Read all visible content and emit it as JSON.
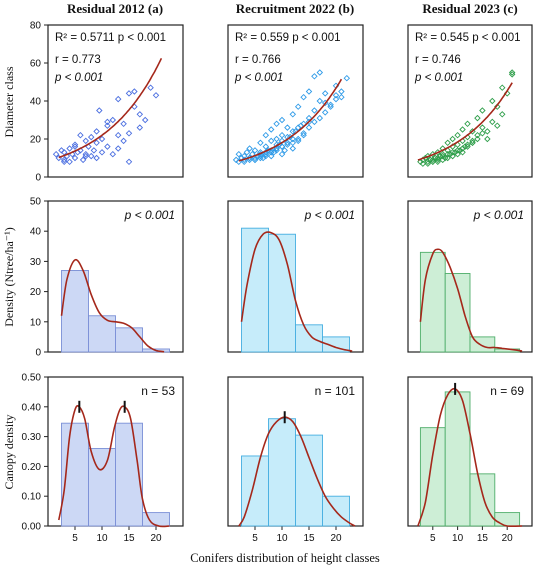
{
  "figure": {
    "xlabel": "Conifers distribution of height classes",
    "column_titles": [
      "Residual 2012 (a)",
      "Recruitment 2022 (b)",
      "Residual 2023 (c)"
    ],
    "row_labels": [
      "Diameter class",
      "Density (Ntree/ha⁻¹)",
      "Canopy density"
    ]
  },
  "chart_data": [
    {
      "id": "a-scatter",
      "type": "scatter",
      "title": "Residual 2012 (a)",
      "ylabel": "Diameter class",
      "ylim": [
        0,
        80
      ],
      "yticks": [
        0,
        20,
        40,
        60,
        80
      ],
      "xlim": [
        0,
        25
      ],
      "annotations": [
        "R² = 0.5711  p < 0.001",
        "r = 0.773",
        "p < 0.001"
      ],
      "colors": {
        "points": "#4a6ee0",
        "fit": "#a5281b"
      },
      "x": [
        1.5,
        2,
        2.5,
        3,
        3,
        3.5,
        4,
        4,
        4.5,
        5,
        5,
        5.5,
        6,
        6,
        6.5,
        7,
        7,
        7.5,
        8,
        8,
        8.5,
        9,
        9,
        9.5,
        10,
        10,
        11,
        11,
        12,
        12,
        13,
        13,
        14,
        14,
        15,
        15,
        16,
        16,
        17,
        17,
        18,
        19,
        20,
        3,
        5,
        7,
        9,
        11,
        13,
        15
      ],
      "y": [
        12,
        10,
        14,
        9,
        13,
        11,
        8,
        15,
        12,
        10,
        17,
        13,
        14,
        22,
        9,
        12,
        19,
        16,
        11,
        21,
        14,
        10,
        18,
        35,
        13,
        20,
        27,
        16,
        12,
        30,
        22,
        15,
        19,
        28,
        8,
        23,
        37,
        45,
        26,
        33,
        30,
        47,
        43,
        8,
        16,
        11,
        24,
        29,
        41,
        44
      ],
      "fit": {
        "model": "exponential",
        "y0": 8.5,
        "k": 0.095,
        "x_range": [
          2,
          21
        ]
      }
    },
    {
      "id": "b-scatter",
      "type": "scatter",
      "title": "Recruitment 2022 (b)",
      "ylim": [
        0,
        80
      ],
      "xlim": [
        0,
        25
      ],
      "annotations": [
        "R² = 0.559  p < 0.001",
        "r = 0.766",
        "p < 0.001"
      ],
      "colors": {
        "points": "#2f9be8",
        "fit": "#a5281b"
      },
      "x": [
        1.5,
        2,
        2,
        2.5,
        3,
        3,
        3.5,
        4,
        4,
        4.5,
        5,
        5,
        5.5,
        6,
        6,
        6.5,
        7,
        7,
        7,
        7.5,
        8,
        8,
        8,
        8.5,
        9,
        9,
        9,
        9.5,
        10,
        10,
        10,
        10.5,
        11,
        11,
        11.5,
        12,
        12,
        12.5,
        13,
        13,
        13.5,
        14,
        14,
        15,
        15,
        16,
        16,
        17,
        17,
        18,
        19,
        20,
        21,
        22,
        3,
        4,
        5,
        6,
        7,
        8,
        9,
        10,
        11,
        12,
        13,
        14,
        15,
        16,
        17,
        18,
        19,
        20,
        21,
        5,
        6,
        7,
        8,
        9,
        10,
        11,
        12,
        6,
        8,
        10,
        12,
        14,
        9,
        11,
        13,
        4,
        7,
        15,
        18,
        20
      ],
      "y": [
        9,
        8,
        12,
        10,
        11,
        9,
        13,
        10,
        15,
        12,
        9,
        14,
        11,
        13,
        18,
        10,
        12,
        16,
        22,
        14,
        11,
        19,
        25,
        13,
        15,
        20,
        28,
        17,
        12,
        22,
        30,
        14,
        18,
        26,
        21,
        15,
        33,
        24,
        19,
        37,
        27,
        22,
        42,
        29,
        45,
        35,
        53,
        40,
        55,
        44,
        37,
        48,
        42,
        52,
        8,
        9,
        10,
        11,
        12,
        13,
        14,
        16,
        17,
        18,
        20,
        23,
        26,
        29,
        31,
        34,
        38,
        41,
        45,
        9,
        10,
        11,
        13,
        15,
        16,
        18,
        20,
        12,
        14,
        19,
        24,
        28,
        17,
        21,
        26,
        10,
        13,
        31,
        39,
        43
      ],
      "fit": {
        "model": "exponential",
        "y0": 7,
        "k": 0.095,
        "x_range": [
          2,
          21
        ]
      }
    },
    {
      "id": "c-scatter",
      "type": "scatter",
      "title": "Residual 2023 (c)",
      "ylim": [
        0,
        80
      ],
      "xlim": [
        0,
        25
      ],
      "annotations": [
        "R² = 0.545  p < 0.001",
        "r = 0.746",
        "p < 0.001"
      ],
      "colors": {
        "points": "#2e9e4a",
        "fit": "#a5281b"
      },
      "x": [
        2.5,
        3,
        3,
        3.5,
        4,
        4,
        4.5,
        5,
        5,
        5.5,
        6,
        6,
        6.5,
        7,
        7,
        7.5,
        8,
        8,
        8.5,
        9,
        9,
        9.5,
        10,
        10,
        10.5,
        11,
        11,
        11.5,
        12,
        12,
        13,
        13,
        14,
        14,
        15,
        16,
        17,
        18,
        19,
        20,
        21,
        4,
        5,
        6,
        7,
        8,
        9,
        10,
        11,
        12,
        13,
        14,
        15,
        6,
        8,
        10,
        12,
        7,
        9,
        11,
        13,
        16,
        18,
        5,
        15,
        17,
        19,
        21
      ],
      "y": [
        8,
        9,
        7,
        10,
        8,
        11,
        9,
        12,
        8,
        10,
        13,
        9,
        11,
        12,
        15,
        10,
        14,
        18,
        12,
        16,
        20,
        13,
        17,
        22,
        14,
        19,
        25,
        16,
        21,
        28,
        18,
        24,
        22,
        31,
        26,
        20,
        29,
        37,
        33,
        44,
        54,
        7,
        9,
        10,
        11,
        12,
        13,
        14,
        15,
        17,
        19,
        20,
        23,
        8,
        10,
        12,
        16,
        9,
        11,
        13,
        18,
        24,
        27,
        8,
        35,
        40,
        47,
        55
      ],
      "fit": {
        "model": "exponential",
        "y0": 7.5,
        "k": 0.09,
        "x_range": [
          2,
          21
        ]
      }
    },
    {
      "id": "a-density",
      "type": "bar",
      "ylabel": "Density (Ntree/ha⁻¹)",
      "ylim": [
        0,
        50
      ],
      "yticks": [
        0,
        10,
        20,
        30,
        40,
        50
      ],
      "xlim": [
        0,
        25
      ],
      "bin_edges": [
        2.5,
        7.5,
        12.5,
        17.5,
        22.5
      ],
      "values": [
        27,
        12,
        8,
        1
      ],
      "annotation": "p < 0.001",
      "colors": {
        "fill": "#ccd8f5",
        "stroke": "#7a8fd6",
        "curve": "#a5281b"
      },
      "curve": [
        [
          2.5,
          12
        ],
        [
          3.5,
          24
        ],
        [
          5,
          30.5
        ],
        [
          6.5,
          27
        ],
        [
          8,
          19
        ],
        [
          9.5,
          13
        ],
        [
          11,
          10.5
        ],
        [
          12.5,
          10
        ],
        [
          14,
          9.5
        ],
        [
          15.5,
          8
        ],
        [
          17,
          5
        ],
        [
          18.5,
          2
        ],
        [
          20,
          0.5
        ],
        [
          21.5,
          0.1
        ]
      ]
    },
    {
      "id": "b-density",
      "type": "bar",
      "ylim": [
        0,
        50
      ],
      "xlim": [
        0,
        25
      ],
      "bin_edges": [
        2.5,
        7.5,
        12.5,
        17.5,
        22.5
      ],
      "values": [
        41,
        39,
        9,
        5
      ],
      "annotation": "p < 0.001",
      "colors": {
        "fill": "#c6ecfa",
        "stroke": "#45aee0",
        "curve": "#a5281b"
      },
      "curve": [
        [
          2.5,
          10
        ],
        [
          3.5,
          22
        ],
        [
          5,
          34
        ],
        [
          6.5,
          39
        ],
        [
          8,
          39.5
        ],
        [
          9.5,
          37
        ],
        [
          11,
          29
        ],
        [
          12.5,
          17
        ],
        [
          14,
          9
        ],
        [
          15.5,
          5
        ],
        [
          17,
          3.5
        ],
        [
          18.5,
          2.5
        ],
        [
          20,
          1.5
        ],
        [
          21.5,
          0.8
        ],
        [
          23,
          0.3
        ]
      ]
    },
    {
      "id": "c-density",
      "type": "bar",
      "ylim": [
        0,
        50
      ],
      "xlim": [
        0,
        25
      ],
      "bin_edges": [
        2.5,
        7.5,
        12.5,
        17.5,
        22.5
      ],
      "values": [
        33,
        26,
        5,
        1
      ],
      "annotation": "p < 0.001",
      "colors": {
        "fill": "#cdeed6",
        "stroke": "#4fae6a",
        "curve": "#a5281b"
      },
      "curve": [
        [
          2.5,
          10
        ],
        [
          3.5,
          24
        ],
        [
          5,
          32.5
        ],
        [
          6,
          34
        ],
        [
          7,
          33
        ],
        [
          8.5,
          28
        ],
        [
          10,
          21
        ],
        [
          11.5,
          12
        ],
        [
          13,
          5
        ],
        [
          14.5,
          2.5
        ],
        [
          16,
          1.5
        ],
        [
          17.5,
          1.5
        ],
        [
          19,
          1.2
        ],
        [
          21,
          0.8
        ],
        [
          23,
          0.3
        ]
      ]
    },
    {
      "id": "a-canopy",
      "type": "bar",
      "ylabel": "Canopy density",
      "ylim": [
        0,
        0.5
      ],
      "yticks": [
        "0.00",
        "0.10",
        "0.20",
        "0.30",
        "0.40",
        "0.50"
      ],
      "xlim": [
        0,
        25
      ],
      "xticks": [
        5,
        10,
        15,
        20
      ],
      "bin_edges": [
        2.5,
        7.5,
        12.5,
        17.5,
        22.5
      ],
      "values": [
        0.345,
        0.26,
        0.345,
        0.045
      ],
      "annotation": "n = 53",
      "peaks": [
        [
          5.8,
          0.4
        ],
        [
          14.2,
          0.4
        ]
      ],
      "colors": {
        "fill": "#ccd8f5",
        "stroke": "#7a8fd6",
        "curve": "#a5281b"
      },
      "curve": [
        [
          2,
          0.02
        ],
        [
          3,
          0.12
        ],
        [
          4,
          0.3
        ],
        [
          5,
          0.39
        ],
        [
          5.8,
          0.4
        ],
        [
          6.8,
          0.36
        ],
        [
          8,
          0.25
        ],
        [
          9.5,
          0.19
        ],
        [
          11,
          0.22
        ],
        [
          12.3,
          0.33
        ],
        [
          13.3,
          0.39
        ],
        [
          14.2,
          0.4
        ],
        [
          15.3,
          0.36
        ],
        [
          16.5,
          0.22
        ],
        [
          17.5,
          0.09
        ],
        [
          18.8,
          0.02
        ],
        [
          20.5,
          0.0
        ],
        [
          22.5,
          0.0
        ]
      ]
    },
    {
      "id": "b-canopy",
      "type": "bar",
      "ylim": [
        0,
        0.5
      ],
      "xlim": [
        0,
        25
      ],
      "xticks": [
        5,
        10,
        15,
        20
      ],
      "bin_edges": [
        2.5,
        7.5,
        12.5,
        17.5,
        22.5
      ],
      "values": [
        0.235,
        0.36,
        0.305,
        0.1
      ],
      "annotation": "n = 101",
      "peaks": [
        [
          10.5,
          0.365
        ]
      ],
      "colors": {
        "fill": "#c6ecfa",
        "stroke": "#45aee0",
        "curve": "#a5281b"
      },
      "curve": [
        [
          2,
          0.0
        ],
        [
          3,
          0.03
        ],
        [
          4.5,
          0.12
        ],
        [
          6,
          0.23
        ],
        [
          7.5,
          0.31
        ],
        [
          9,
          0.35
        ],
        [
          10.5,
          0.365
        ],
        [
          12,
          0.35
        ],
        [
          13.5,
          0.3
        ],
        [
          15,
          0.23
        ],
        [
          16.5,
          0.16
        ],
        [
          18,
          0.1
        ],
        [
          19.5,
          0.06
        ],
        [
          21,
          0.03
        ],
        [
          22.5,
          0.01
        ],
        [
          23.5,
          0.0
        ]
      ]
    },
    {
      "id": "c-canopy",
      "type": "bar",
      "ylim": [
        0,
        0.5
      ],
      "xlim": [
        0,
        25
      ],
      "xticks": [
        5,
        10,
        15,
        20
      ],
      "bin_edges": [
        2.5,
        7.5,
        12.5,
        17.5,
        22.5
      ],
      "values": [
        0.33,
        0.45,
        0.175,
        0.045
      ],
      "annotation": "n = 69",
      "peaks": [
        [
          9.5,
          0.46
        ]
      ],
      "colors": {
        "fill": "#cdeed6",
        "stroke": "#4fae6a",
        "curve": "#a5281b"
      },
      "curve": [
        [
          2,
          0.0
        ],
        [
          3.5,
          0.08
        ],
        [
          5,
          0.24
        ],
        [
          6.5,
          0.37
        ],
        [
          8,
          0.44
        ],
        [
          9.5,
          0.46
        ],
        [
          11,
          0.42
        ],
        [
          12.5,
          0.31
        ],
        [
          14,
          0.18
        ],
        [
          15.5,
          0.08
        ],
        [
          17,
          0.03
        ],
        [
          18.5,
          0.01
        ],
        [
          20,
          0.0
        ],
        [
          23,
          0.0
        ]
      ]
    }
  ]
}
